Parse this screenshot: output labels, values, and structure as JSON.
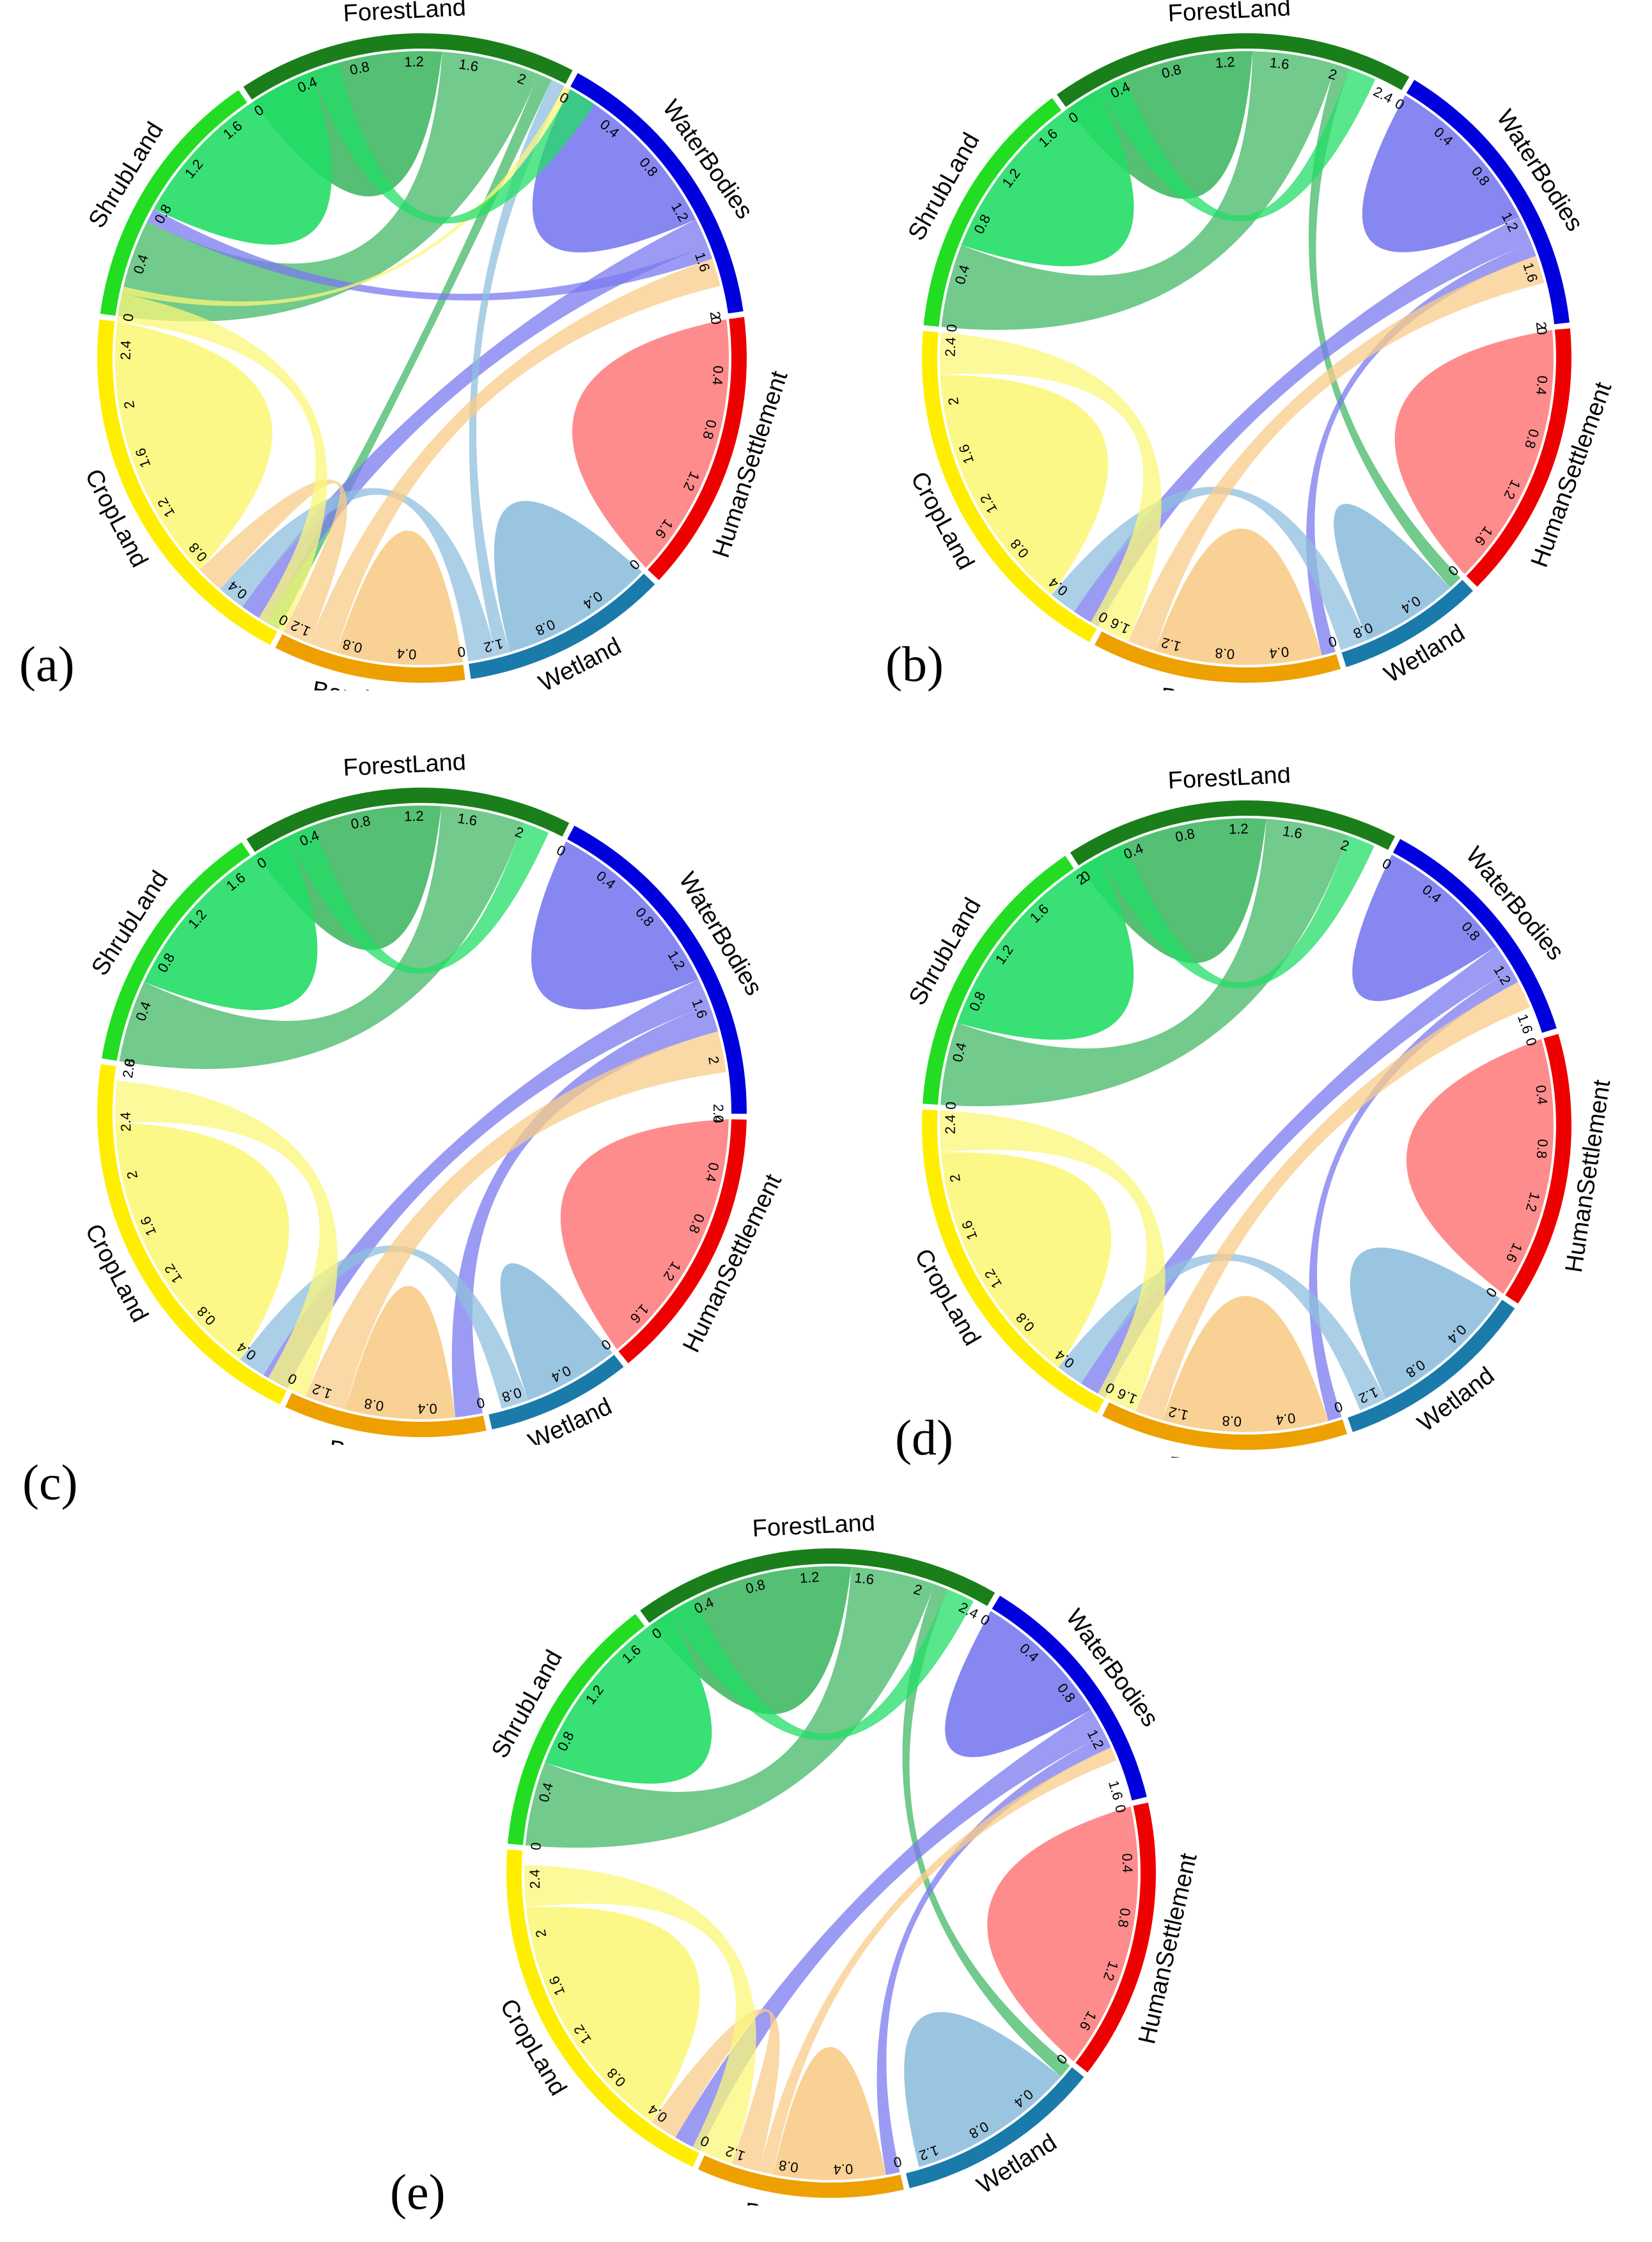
{
  "colors": {
    "ForestLand": "#1a7f1a",
    "WaterBodies": "#0000dd",
    "HumanSettlement": "#ee0000",
    "Wetland": "#1a7aaa",
    "BareLand": "#eea000",
    "CropLand": "#ffee00",
    "ShrubLand": "#22dd22"
  },
  "ribbon_colors": {
    "ForestLand": "#43b865",
    "WaterBodies": "#7a7af0",
    "HumanSettlement": "#ff7f7f",
    "Wetland": "#8fbfdd",
    "BareLand": "#f8cc88",
    "CropLand": "#fbf77a",
    "ShrubLand": "#22dd66"
  },
  "chart_data": [
    {
      "panel": "(a)",
      "type": "chord",
      "categories": [
        "ForestLand",
        "WaterBodies",
        "HumanSettlement",
        "Wetland",
        "BareLand",
        "CropLand",
        "ShrubLand"
      ],
      "totals": [
        2.3,
        2.0,
        1.9,
        1.4,
        1.3,
        2.6,
        1.8
      ],
      "ticks": [
        [
          "0",
          "0.4",
          "0.8",
          "1.2",
          "1.6",
          "2"
        ],
        [
          "0",
          "0.4",
          "0.8",
          "1.2",
          "1.6",
          "2"
        ],
        [
          "0",
          "0.4",
          "0.8",
          "1.2",
          "1.6"
        ],
        [
          "0",
          "0.4",
          "0.8",
          "1.2"
        ],
        [
          "0",
          "0.4",
          "0.8",
          "1.2"
        ],
        [
          "0",
          "0.4",
          "0.8",
          "1.2",
          "1.6",
          "2",
          "2.4"
        ],
        [
          "0",
          "0.4",
          "0.8",
          "1.2",
          "1.6"
        ]
      ],
      "flows": [
        {
          "from": "ForestLand",
          "to": "ForestLand",
          "value": 1.4
        },
        {
          "from": "ForestLand",
          "to": "ShrubLand",
          "value": 0.7
        },
        {
          "from": "ForestLand",
          "to": "CropLand",
          "value": 0.1
        },
        {
          "from": "WaterBodies",
          "to": "WaterBodies",
          "value": 1.3
        },
        {
          "from": "WaterBodies",
          "to": "CropLand",
          "value": 0.2
        },
        {
          "from": "WaterBodies",
          "to": "ShrubLand",
          "value": 0.1
        },
        {
          "from": "HumanSettlement",
          "to": "HumanSettlement",
          "value": 1.9
        },
        {
          "from": "Wetland",
          "to": "Wetland",
          "value": 1.1
        },
        {
          "from": "Wetland",
          "to": "ForestLand",
          "value": 0.1
        },
        {
          "from": "Wetland",
          "to": "CropLand",
          "value": 0.2
        },
        {
          "from": "BareLand",
          "to": "BareLand",
          "value": 0.9
        },
        {
          "from": "BareLand",
          "to": "WaterBodies",
          "value": 0.2
        },
        {
          "from": "BareLand",
          "to": "CropLand",
          "value": 0.2
        },
        {
          "from": "CropLand",
          "to": "CropLand",
          "value": 1.9
        },
        {
          "from": "CropLand",
          "to": "BareLand",
          "value": 0.2
        },
        {
          "from": "CropLand",
          "to": "ForestLand",
          "value": 0.05
        },
        {
          "from": "ShrubLand",
          "to": "ShrubLand",
          "value": 1.5
        },
        {
          "from": "ShrubLand",
          "to": "ForestLand",
          "value": 0.2
        }
      ]
    },
    {
      "panel": "(b)",
      "type": "chord",
      "categories": [
        "ForestLand",
        "WaterBodies",
        "HumanSettlement",
        "Wetland",
        "BareLand",
        "CropLand",
        "ShrubLand"
      ],
      "totals": [
        2.5,
        2.0,
        1.9,
        1.0,
        1.7,
        2.5,
        1.8
      ],
      "ticks": [
        [
          "0",
          "0.4",
          "0.8",
          "1.2",
          "1.6",
          "2",
          "2.4"
        ],
        [
          "0",
          "0.4",
          "0.8",
          "1.2",
          "1.6",
          "2"
        ],
        [
          "0",
          "0.4",
          "0.8",
          "1.2",
          "1.6"
        ],
        [
          "0",
          "0.4",
          "0.8"
        ],
        [
          "0",
          "0.4",
          "0.8",
          "1.2",
          "1.6"
        ],
        [
          "0",
          "0.4",
          "0.8",
          "1.2",
          "1.6",
          "2",
          "2.4"
        ],
        [
          "0",
          "0.4",
          "0.8",
          "1.2",
          "1.6"
        ]
      ],
      "flows": [
        {
          "from": "ForestLand",
          "to": "ForestLand",
          "value": 1.4
        },
        {
          "from": "ForestLand",
          "to": "ShrubLand",
          "value": 0.6
        },
        {
          "from": "ForestLand",
          "to": "Wetland",
          "value": 0.1
        },
        {
          "from": "WaterBodies",
          "to": "WaterBodies",
          "value": 1.2
        },
        {
          "from": "WaterBodies",
          "to": "CropLand",
          "value": 0.2
        },
        {
          "from": "WaterBodies",
          "to": "BareLand",
          "value": 0.1
        },
        {
          "from": "HumanSettlement",
          "to": "HumanSettlement",
          "value": 1.9
        },
        {
          "from": "Wetland",
          "to": "Wetland",
          "value": 0.7
        },
        {
          "from": "Wetland",
          "to": "CropLand",
          "value": 0.2
        },
        {
          "from": "BareLand",
          "to": "BareLand",
          "value": 1.2
        },
        {
          "from": "BareLand",
          "to": "WaterBodies",
          "value": 0.2
        },
        {
          "from": "CropLand",
          "to": "CropLand",
          "value": 1.8
        },
        {
          "from": "CropLand",
          "to": "BareLand",
          "value": 0.3
        },
        {
          "from": "ShrubLand",
          "to": "ShrubLand",
          "value": 1.5
        },
        {
          "from": "ShrubLand",
          "to": "ForestLand",
          "value": 0.2
        }
      ]
    },
    {
      "panel": "(c)",
      "type": "chord",
      "categories": [
        "ForestLand",
        "WaterBodies",
        "HumanSettlement",
        "Wetland",
        "BareLand",
        "CropLand",
        "ShrubLand"
      ],
      "totals": [
        2.3,
        2.4,
        1.9,
        1.0,
        1.4,
        2.8,
        1.8
      ],
      "ticks": [
        [
          "0",
          "0.4",
          "0.8",
          "1.2",
          "1.6",
          "2"
        ],
        [
          "0",
          "0.4",
          "0.8",
          "1.2",
          "1.6",
          "2",
          "2.4"
        ],
        [
          "0",
          "0.4",
          "0.8",
          "1.2",
          "1.6"
        ],
        [
          "0",
          "0.4",
          "0.8"
        ],
        [
          "0",
          "0.4",
          "0.8",
          "1.2"
        ],
        [
          "0",
          "0.4",
          "0.8",
          "1.2",
          "1.6",
          "2",
          "2.4",
          "2.8"
        ],
        [
          "0",
          "0.4",
          "0.8",
          "1.2",
          "1.6"
        ]
      ],
      "flows": [
        {
          "from": "ForestLand",
          "to": "ForestLand",
          "value": 1.4
        },
        {
          "from": "ForestLand",
          "to": "ShrubLand",
          "value": 0.6
        },
        {
          "from": "WaterBodies",
          "to": "WaterBodies",
          "value": 1.4
        },
        {
          "from": "WaterBodies",
          "to": "CropLand",
          "value": 0.2
        },
        {
          "from": "WaterBodies",
          "to": "BareLand",
          "value": 0.2
        },
        {
          "from": "HumanSettlement",
          "to": "HumanSettlement",
          "value": 1.9
        },
        {
          "from": "Wetland",
          "to": "Wetland",
          "value": 0.7
        },
        {
          "from": "Wetland",
          "to": "CropLand",
          "value": 0.2
        },
        {
          "from": "BareLand",
          "to": "BareLand",
          "value": 0.8
        },
        {
          "from": "BareLand",
          "to": "WaterBodies",
          "value": 0.3
        },
        {
          "from": "CropLand",
          "to": "CropLand",
          "value": 2.0
        },
        {
          "from": "CropLand",
          "to": "BareLand",
          "value": 0.3
        },
        {
          "from": "ShrubLand",
          "to": "ShrubLand",
          "value": 1.5
        },
        {
          "from": "ShrubLand",
          "to": "ForestLand",
          "value": 0.2
        }
      ]
    },
    {
      "panel": "(d)",
      "type": "chord",
      "categories": [
        "ForestLand",
        "WaterBodies",
        "HumanSettlement",
        "Wetland",
        "BareLand",
        "CropLand",
        "ShrubLand"
      ],
      "totals": [
        2.3,
        1.7,
        1.9,
        1.4,
        1.7,
        2.5,
        2.0
      ],
      "ticks": [
        [
          "0",
          "0.4",
          "0.8",
          "1.2",
          "1.6",
          "2"
        ],
        [
          "0",
          "0.4",
          "0.8",
          "1.2",
          "1.6"
        ],
        [
          "0",
          "0.4",
          "0.8",
          "1.2",
          "1.6"
        ],
        [
          "0",
          "0.4",
          "0.8",
          "1.2"
        ],
        [
          "0",
          "0.4",
          "0.8",
          "1.2",
          "1.6"
        ],
        [
          "0",
          "0.4",
          "0.8",
          "1.2",
          "1.6",
          "2",
          "2.4"
        ],
        [
          "0",
          "0.4",
          "0.8",
          "1.2",
          "1.6",
          "2"
        ]
      ],
      "flows": [
        {
          "from": "ForestLand",
          "to": "ForestLand",
          "value": 1.4
        },
        {
          "from": "ForestLand",
          "to": "ShrubLand",
          "value": 0.6
        },
        {
          "from": "WaterBodies",
          "to": "WaterBodies",
          "value": 1.0
        },
        {
          "from": "WaterBodies",
          "to": "CropLand",
          "value": 0.2
        },
        {
          "from": "WaterBodies",
          "to": "BareLand",
          "value": 0.1
        },
        {
          "from": "HumanSettlement",
          "to": "HumanSettlement",
          "value": 1.9
        },
        {
          "from": "Wetland",
          "to": "Wetland",
          "value": 1.1
        },
        {
          "from": "Wetland",
          "to": "CropLand",
          "value": 0.2
        },
        {
          "from": "BareLand",
          "to": "BareLand",
          "value": 1.2
        },
        {
          "from": "BareLand",
          "to": "WaterBodies",
          "value": 0.2
        },
        {
          "from": "CropLand",
          "to": "CropLand",
          "value": 1.8
        },
        {
          "from": "CropLand",
          "to": "BareLand",
          "value": 0.3
        },
        {
          "from": "ShrubLand",
          "to": "ShrubLand",
          "value": 1.6
        },
        {
          "from": "ShrubLand",
          "to": "ForestLand",
          "value": 0.2
        }
      ]
    },
    {
      "panel": "(e)",
      "type": "chord",
      "categories": [
        "ForestLand",
        "WaterBodies",
        "HumanSettlement",
        "Wetland",
        "BareLand",
        "CropLand",
        "ShrubLand"
      ],
      "totals": [
        2.5,
        1.7,
        1.9,
        1.4,
        1.4,
        2.6,
        1.8
      ],
      "ticks": [
        [
          "0",
          "0.4",
          "0.8",
          "1.2",
          "1.6",
          "2",
          "2.4"
        ],
        [
          "0",
          "0.4",
          "0.8",
          "1.2",
          "1.6"
        ],
        [
          "0",
          "0.4",
          "0.8",
          "1.2",
          "1.6"
        ],
        [
          "0",
          "0.4",
          "0.8",
          "1.2"
        ],
        [
          "0",
          "0.4",
          "0.8",
          "1.2"
        ],
        [
          "0",
          "0.4",
          "0.8",
          "1.2",
          "1.6",
          "2",
          "2.4"
        ],
        [
          "0",
          "0.4",
          "0.8",
          "1.2",
          "1.6"
        ]
      ],
      "flows": [
        {
          "from": "ForestLand",
          "to": "ForestLand",
          "value": 1.5
        },
        {
          "from": "ForestLand",
          "to": "ShrubLand",
          "value": 0.6
        },
        {
          "from": "ForestLand",
          "to": "Wetland",
          "value": 0.1
        },
        {
          "from": "WaterBodies",
          "to": "WaterBodies",
          "value": 1.0
        },
        {
          "from": "WaterBodies",
          "to": "CropLand",
          "value": 0.2
        },
        {
          "from": "WaterBodies",
          "to": "BareLand",
          "value": 0.1
        },
        {
          "from": "HumanSettlement",
          "to": "HumanSettlement",
          "value": 1.9
        },
        {
          "from": "Wetland",
          "to": "Wetland",
          "value": 1.2
        },
        {
          "from": "BareLand",
          "to": "BareLand",
          "value": 0.8
        },
        {
          "from": "BareLand",
          "to": "WaterBodies",
          "value": 0.1
        },
        {
          "from": "BareLand",
          "to": "CropLand",
          "value": 0.2
        },
        {
          "from": "CropLand",
          "to": "CropLand",
          "value": 1.8
        },
        {
          "from": "CropLand",
          "to": "BareLand",
          "value": 0.3
        },
        {
          "from": "ShrubLand",
          "to": "ShrubLand",
          "value": 1.4
        },
        {
          "from": "ShrubLand",
          "to": "ForestLand",
          "value": 0.2
        }
      ]
    }
  ]
}
